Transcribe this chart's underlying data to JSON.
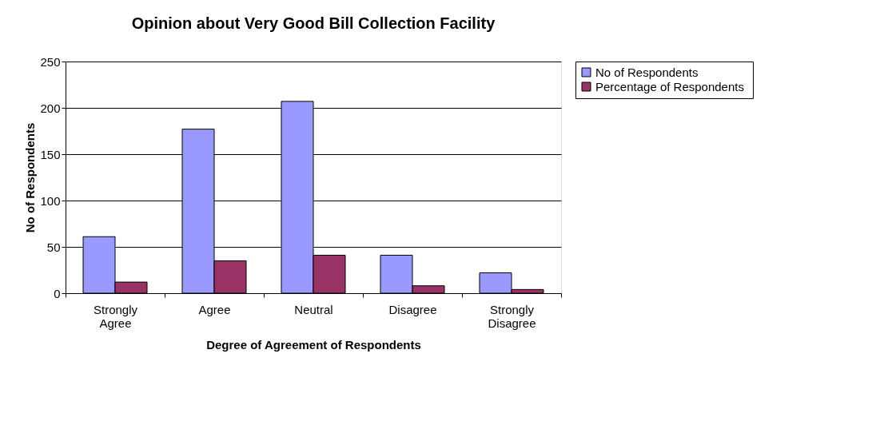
{
  "chart_data": {
    "type": "bar",
    "title": "Opinion about Very Good Bill Collection Facility",
    "xlabel": "Degree of Agreement of Respondents",
    "ylabel": "No of Respondents",
    "categories": [
      "Strongly Agree",
      "Agree",
      "Neutral",
      "Disagree",
      "Strongly Disagree"
    ],
    "series": [
      {
        "name": "No of Respondents",
        "color": "#9999ff",
        "values": [
          61,
          177,
          207,
          41,
          22
        ]
      },
      {
        "name": "Percentage of  Respondents",
        "color": "#993366",
        "values": [
          12,
          35,
          41,
          8,
          4
        ]
      }
    ],
    "ylim": [
      0,
      250
    ],
    "yticks": [
      0,
      50,
      100,
      150,
      200,
      250
    ],
    "grid": "y",
    "legend": "right"
  }
}
